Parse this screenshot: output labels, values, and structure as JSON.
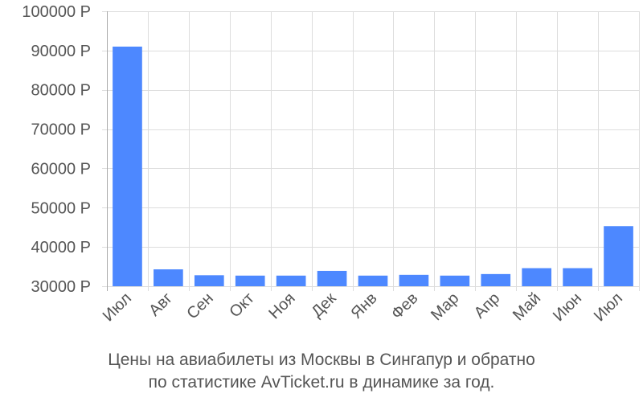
{
  "chart_data": {
    "type": "bar",
    "title": "",
    "xlabel": "",
    "ylabel": "",
    "categories": [
      "Июл",
      "Авг",
      "Сен",
      "Окт",
      "Ноя",
      "Дек",
      "Янв",
      "Фев",
      "Мар",
      "Апр",
      "Май",
      "Июн",
      "Июл"
    ],
    "values": [
      91000,
      34300,
      32800,
      32700,
      32700,
      33900,
      32700,
      32900,
      32700,
      33100,
      34600,
      34600,
      45300
    ],
    "ylim": [
      30000,
      100000
    ],
    "yticks": [
      30000,
      40000,
      50000,
      60000,
      70000,
      80000,
      90000,
      100000
    ],
    "ytick_labels": [
      "30000 Р",
      "40000 Р",
      "50000 Р",
      "60000 Р",
      "70000 Р",
      "80000 Р",
      "90000 Р",
      "100000 Р"
    ],
    "grid": true,
    "legend": "none",
    "bar_color": "#4d88ff",
    "grid_color": "#dddddd",
    "axis_color": "#aaaaaa",
    "text_color": "#555555"
  },
  "caption": {
    "line1": "Цены на авиабилеты из Москвы в Сингапур и обратно",
    "line2": "по статистике AvTicket.ru в динамике за год."
  }
}
